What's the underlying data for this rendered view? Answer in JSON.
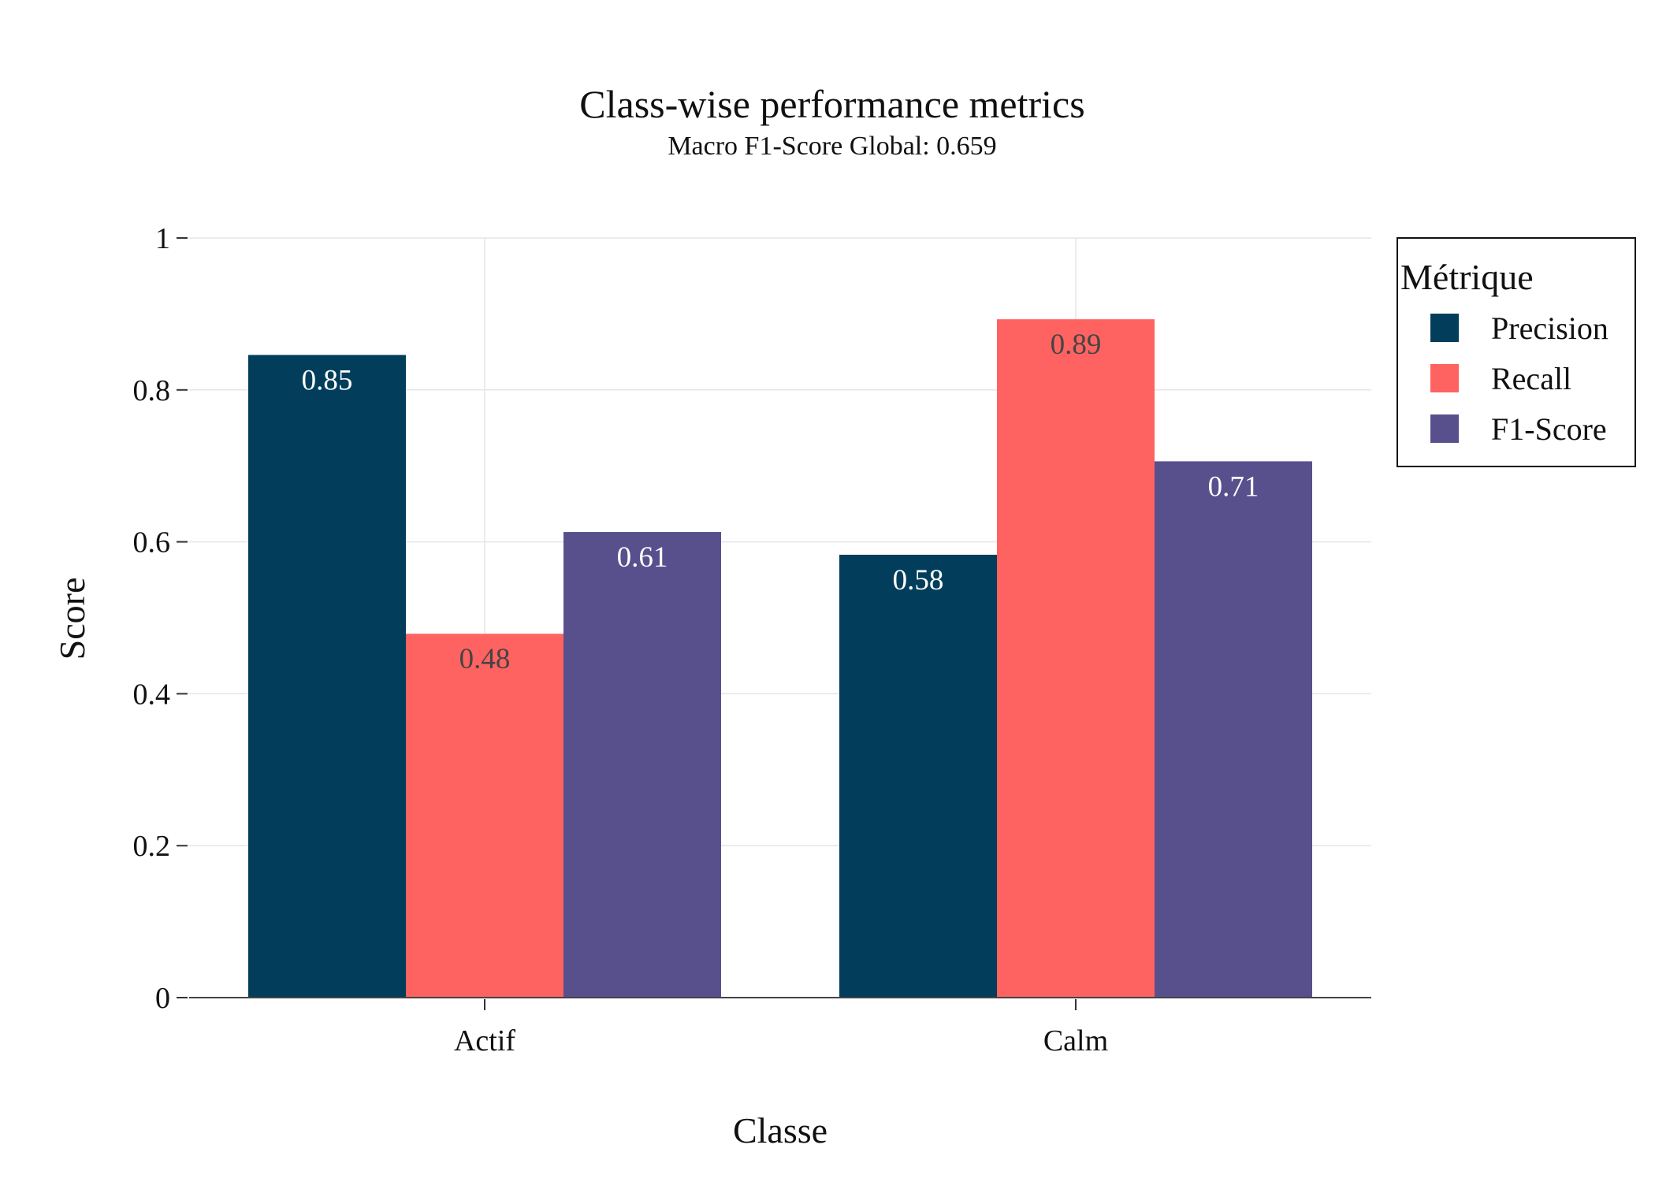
{
  "chart_data": {
    "type": "bar",
    "title": "Class-wise performance metrics",
    "subtitle": "Macro F1-Score Global: 0.659",
    "xlabel": "Classe",
    "ylabel": "Score",
    "categories": [
      "Actif",
      "Calm"
    ],
    "series": [
      {
        "name": "Precision",
        "color": "#023E5B",
        "values": [
          0.846,
          0.583
        ],
        "labels": [
          "0.85",
          "0.58"
        ]
      },
      {
        "name": "Recall",
        "color": "#FF6361",
        "values": [
          0.479,
          0.893
        ],
        "labels": [
          "0.48",
          "0.89"
        ]
      },
      {
        "name": "F1-Score",
        "color": "#58508D",
        "values": [
          0.613,
          0.706
        ],
        "labels": [
          "0.61",
          "0.71"
        ]
      }
    ],
    "ylim": [
      0,
      1
    ],
    "yticks": [
      0,
      0.2,
      0.4,
      0.6,
      0.8,
      1
    ],
    "ytick_labels": [
      "0",
      "0.2",
      "0.4",
      "0.6",
      "0.8",
      "1"
    ],
    "grid": true,
    "legend": {
      "title": "Métrique",
      "position": "top-right"
    },
    "bar_label_colors": {
      "dark": "#ffffff",
      "light": "#444444"
    }
  }
}
